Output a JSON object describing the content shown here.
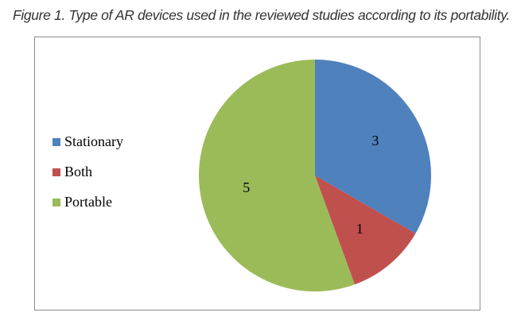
{
  "caption": "Figure 1. Type of AR devices used in the reviewed studies according to its portability.",
  "chart_data": {
    "type": "pie",
    "title": "",
    "categories": [
      "Stationary",
      "Both",
      "Portable"
    ],
    "values": [
      3,
      1,
      5
    ],
    "colors": [
      "#4f81bd",
      "#c0504d",
      "#9bbb59"
    ],
    "legend_position": "left",
    "start_angle": "12 o'clock, clockwise"
  }
}
